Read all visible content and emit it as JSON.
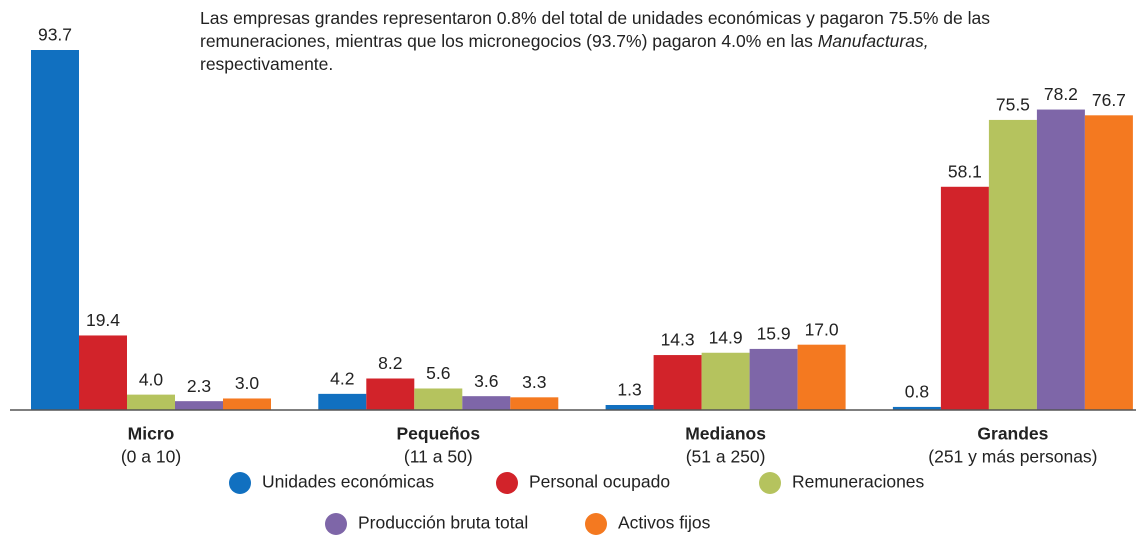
{
  "chart_data": {
    "type": "bar",
    "title": [
      "Las empresas grandes representaron 0.8% del total de unidades económicas y pagaron 75.5% de las remuneraciones, mientras que los micronegocios (93.7%) pagaron 4.0% en las",
      "Manufacturas,",
      "respectivamente."
    ],
    "categories": [
      "Micro",
      "Pequeños",
      "Medianos",
      "Grandes"
    ],
    "category_ranges": [
      "(0 a 10)",
      "(11 a 50)",
      "(51 a 250)",
      "(251 y más personas)"
    ],
    "series": [
      {
        "name": "Unidades económicas",
        "color": "#1170c0",
        "values": [
          93.7,
          4.2,
          1.3,
          0.8
        ]
      },
      {
        "name": "Personal ocupado",
        "color": "#d2232a",
        "values": [
          19.4,
          8.2,
          14.3,
          58.1
        ]
      },
      {
        "name": "Remuneraciones",
        "color": "#b5c35e",
        "values": [
          4.0,
          5.6,
          14.9,
          75.5
        ]
      },
      {
        "name": "Producción bruta total",
        "color": "#7e66a8",
        "values": [
          2.3,
          3.6,
          15.9,
          78.2
        ]
      },
      {
        "name": "Activos fijos",
        "color": "#f47920",
        "values": [
          3.0,
          3.3,
          17.0,
          76.7
        ]
      }
    ],
    "value_labels": [
      [
        "93.7",
        "4.2",
        "1.3",
        "0.8"
      ],
      [
        "19.4",
        "8.2",
        "14.3",
        "58.1"
      ],
      [
        "4.0",
        "5.6",
        "14.9",
        "75.5"
      ],
      [
        "2.3",
        "3.6",
        "15.9",
        "78.2"
      ],
      [
        "3.0",
        "3.3",
        "17.0",
        "76.7"
      ]
    ]
  }
}
